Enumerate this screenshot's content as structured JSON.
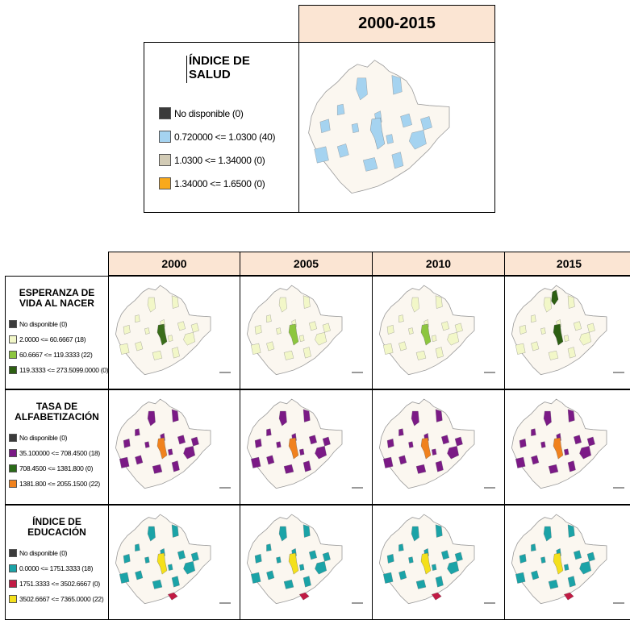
{
  "top_panel": {
    "period_header": "2000-2015",
    "legend_title_line1": "ÍNDICE DE",
    "legend_title_line2": "SALUD",
    "legend_items": [
      {
        "label": "No disponible (0)",
        "color": "#3b3b3b"
      },
      {
        "label": "0.720000 <= 1.0300 (40)",
        "color": "#a5d3f0"
      },
      {
        "label": "1.0300 <= 1.34000 (0)",
        "color": "#d2cbb5"
      },
      {
        "label": "1.34000 <= 1.6500 (0)",
        "color": "#f8a91c"
      }
    ]
  },
  "table": {
    "year_headers": [
      "2000",
      "2005",
      "2010",
      "2015"
    ],
    "rows": [
      {
        "title_line1": "ESPERANZA DE",
        "title_line2": "VIDA AL NACER",
        "legend": [
          {
            "label": "No disponible (0)",
            "color": "#3b3b3b"
          },
          {
            "label": "2.0000 <= 60.6667 (18)",
            "color": "#f2f7c8"
          },
          {
            "label": "60.6667 <= 119.3333 (22)",
            "color": "#8dc63f"
          },
          {
            "label": "119.3333 <= 273.5099.0000 (0)",
            "color": "#2d5f12"
          }
        ],
        "region_color": "#f2f7c8",
        "center_colors": [
          "#3a6d1a",
          "#8dc63f",
          "#8dc63f",
          "#2d5f12"
        ]
      },
      {
        "title_line1": "TASA DE",
        "title_line2": "ALFABETIZACIÓN",
        "legend": [
          {
            "label": "No disponible (0)",
            "color": "#3b3b3b"
          },
          {
            "label": "35.100000 <= 708.4500 (18)",
            "color": "#7b1a86"
          },
          {
            "label": "708.4500 <= 1381.800 (0)",
            "color": "#2a6b18"
          },
          {
            "label": "1381.800 <= 2055.1500 (22)",
            "color": "#f0821e"
          }
        ],
        "region_color": "#7b1a86",
        "center_colors": [
          "#f0821e",
          "#f0821e",
          "#f0821e",
          "#f0821e"
        ]
      },
      {
        "title_line1": "ÍNDICE DE",
        "title_line2": "EDUCACIÓN",
        "legend": [
          {
            "label": "No disponible (0)",
            "color": "#3b3b3b"
          },
          {
            "label": "0.0000 <= 1751.3333 (18)",
            "color": "#1ba3a7"
          },
          {
            "label": "1751.3333 <= 3502.6667 (0)",
            "color": "#c11b44"
          },
          {
            "label": "3502.6667 <= 7365.0000 (22)",
            "color": "#f4e01c"
          }
        ],
        "region_color": "#1ba3a7",
        "center_colors": [
          "#f4e01c",
          "#f4e01c",
          "#f4e01c",
          "#f4e01c"
        ],
        "south_color": "#c11b44"
      }
    ]
  },
  "map_colors": {
    "state_fill": "#fbf7f0",
    "state_outline": "#9a9a9a",
    "top_region": "#a5d3f0"
  }
}
